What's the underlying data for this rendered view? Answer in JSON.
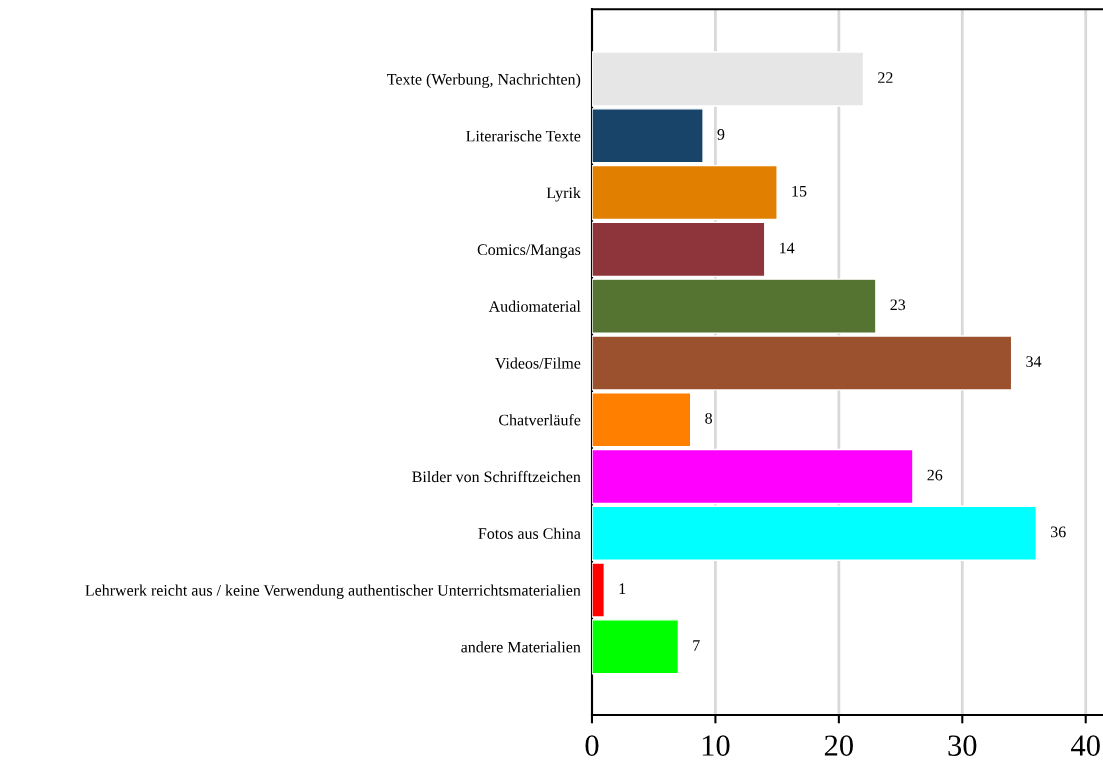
{
  "chart_data": {
    "type": "bar",
    "orientation": "horizontal",
    "categories": [
      "Texte (Werbung, Nachrichten)",
      "Literarische Texte",
      "Lyrik",
      "Comics/Mangas",
      "Audiomaterial",
      "Videos/Filme",
      "Chatverläufe",
      "Bilder von Schrifftzeichen",
      "Fotos aus China",
      "Lehrwerk reicht aus / keine Verwendung authentischer Unterrichtsmaterialien",
      "andere Materialien"
    ],
    "values": [
      22,
      9,
      15,
      14,
      23,
      34,
      8,
      26,
      36,
      1,
      7
    ],
    "colors": [
      "#e6e6e6",
      "#174468",
      "#e07f00",
      "#8e343b",
      "#567431",
      "#9c512e",
      "#ff7f00",
      "#ff00ff",
      "#00ffff",
      "#ff0000",
      "#00ff00"
    ],
    "xlim": [
      0,
      41.4
    ],
    "xticks": [
      0,
      10,
      20,
      30,
      40
    ],
    "grid": "x",
    "data_labels": true,
    "legend": false
  }
}
